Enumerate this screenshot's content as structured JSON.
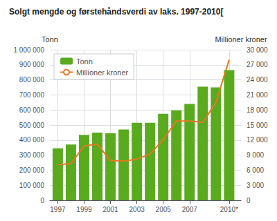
{
  "chart_data": {
    "type": "bar",
    "title": "Solgt mengde og førstehåndsverdi av laks. 1997-2010[",
    "x": [
      1997,
      1998,
      1999,
      2000,
      2001,
      2002,
      2003,
      2004,
      2005,
      2006,
      2007,
      2008,
      2009,
      2010
    ],
    "xlim": [
      1996.4,
      2010.9
    ],
    "xticks": [
      1997,
      1999,
      2001,
      2003,
      2005,
      2007,
      {
        "value": 2010,
        "label": "2010*"
      }
    ],
    "ylabel": "Tonn",
    "y2label": "Millioner kroner",
    "ylim": [
      0,
      1000000
    ],
    "yticks": [
      0,
      {
        "value": 100000,
        "label": "100 000"
      },
      {
        "value": 200000,
        "label": "200 000"
      },
      {
        "value": 300000,
        "label": "300 000"
      },
      {
        "value": 400000,
        "label": "400 000"
      },
      {
        "value": 500000,
        "label": "500 000"
      },
      {
        "value": 600000,
        "label": "600 000"
      },
      {
        "value": 700000,
        "label": "700 000"
      },
      {
        "value": 800000,
        "label": "800 000"
      },
      {
        "value": 900000,
        "label": "900 000"
      },
      {
        "value": 1000000,
        "label": "1 000 000"
      }
    ],
    "y2lim": [
      0,
      30000
    ],
    "y2ticks": [
      0,
      {
        "value": 3000,
        "label": "3 000"
      },
      {
        "value": 6000,
        "label": "6 000"
      },
      {
        "value": 9000,
        "label": "9 000"
      },
      {
        "value": 12000,
        "label": "12 000"
      },
      {
        "value": 15000,
        "label": "15 000"
      },
      {
        "value": 18000,
        "label": "18 000"
      },
      {
        "value": 21000,
        "label": "21 000"
      },
      {
        "value": 24000,
        "label": "24 000"
      },
      {
        "value": 27000,
        "label": "27 000"
      },
      {
        "value": 30000,
        "label": "30 000"
      }
    ],
    "series": [
      {
        "name": "Tonn",
        "type": "bar",
        "color": "#5aaa1e",
        "values": [
          345000,
          370000,
          435000,
          450000,
          445000,
          470000,
          515000,
          515000,
          575000,
          598000,
          640000,
          755000,
          750000,
          865000
        ]
      },
      {
        "name": "Millioner kroner",
        "type": "line",
        "color": "#e87722",
        "axis": "y2",
        "values": [
          7100,
          7300,
          10800,
          11200,
          7900,
          7800,
          8200,
          9200,
          12100,
          15800,
          15800,
          15500,
          19500,
          28000
        ]
      }
    ],
    "grid": true,
    "legend": "upper left"
  }
}
